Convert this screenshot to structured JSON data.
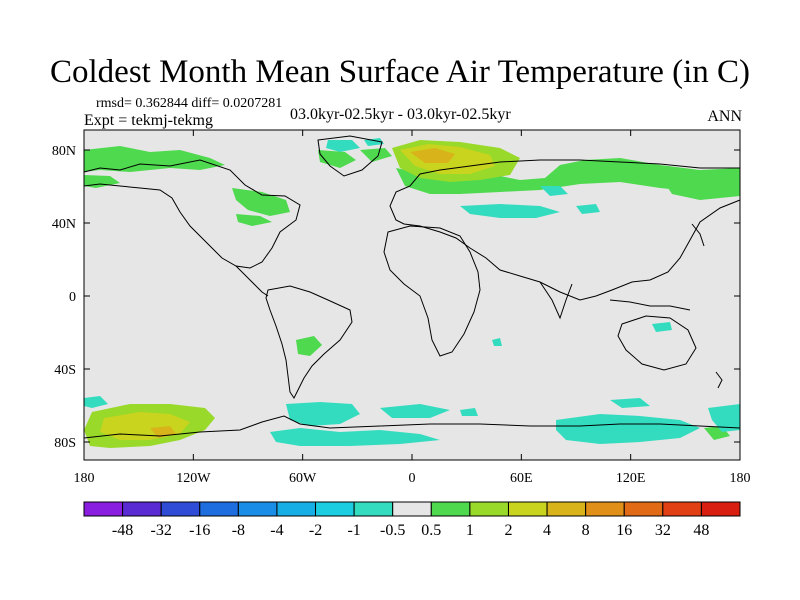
{
  "title": "Coldest Month Mean Surface Air Temperature (in C)",
  "stats": "rmsd= 0.362844 diff= 0.0207281",
  "expt": "Expt = tekmj-tekmg",
  "period": "03.0kyr-02.5kyr - 03.0kyr-02.5kyr",
  "season": "ANN",
  "map": {
    "lon_ticks": [
      "180",
      "120W",
      "60W",
      "0",
      "60E",
      "120E",
      "180"
    ],
    "lat_ticks": [
      "80N",
      "40N",
      "0",
      "40S",
      "80S"
    ],
    "land_color": "#e6e6e6",
    "coastline_color": "#000000"
  },
  "colorbar": {
    "labels": [
      "-48",
      "-32",
      "-16",
      "-8",
      "-4",
      "-2",
      "-1",
      "-0.5",
      "0.5",
      "1",
      "2",
      "4",
      "8",
      "16",
      "32",
      "48"
    ],
    "colors": [
      "#8a1ee0",
      "#5a2ad2",
      "#2f4cd6",
      "#1e6ee0",
      "#1a8ee6",
      "#17aee6",
      "#1ccce0",
      "#34dcbf",
      "#e6e6e6",
      "#4ed94e",
      "#98d92a",
      "#c8d41e",
      "#d8b41a",
      "#e09018",
      "#e06a16",
      "#e04014",
      "#d81e10"
    ]
  },
  "anomaly_regions": [
    {
      "name": "arctic-canada-positive",
      "class": "1"
    },
    {
      "name": "scandinavia-positive",
      "class": "4"
    },
    {
      "name": "siberia-positive",
      "class": "2"
    },
    {
      "name": "patagonia-positive",
      "class": "1"
    },
    {
      "name": "ross-sea-positive",
      "class": "4"
    },
    {
      "name": "weddell-sea-negative",
      "class": "-1"
    },
    {
      "name": "east-antarctic-negative",
      "class": "-1"
    },
    {
      "name": "southern-ocean-negative",
      "class": "-1"
    }
  ]
}
